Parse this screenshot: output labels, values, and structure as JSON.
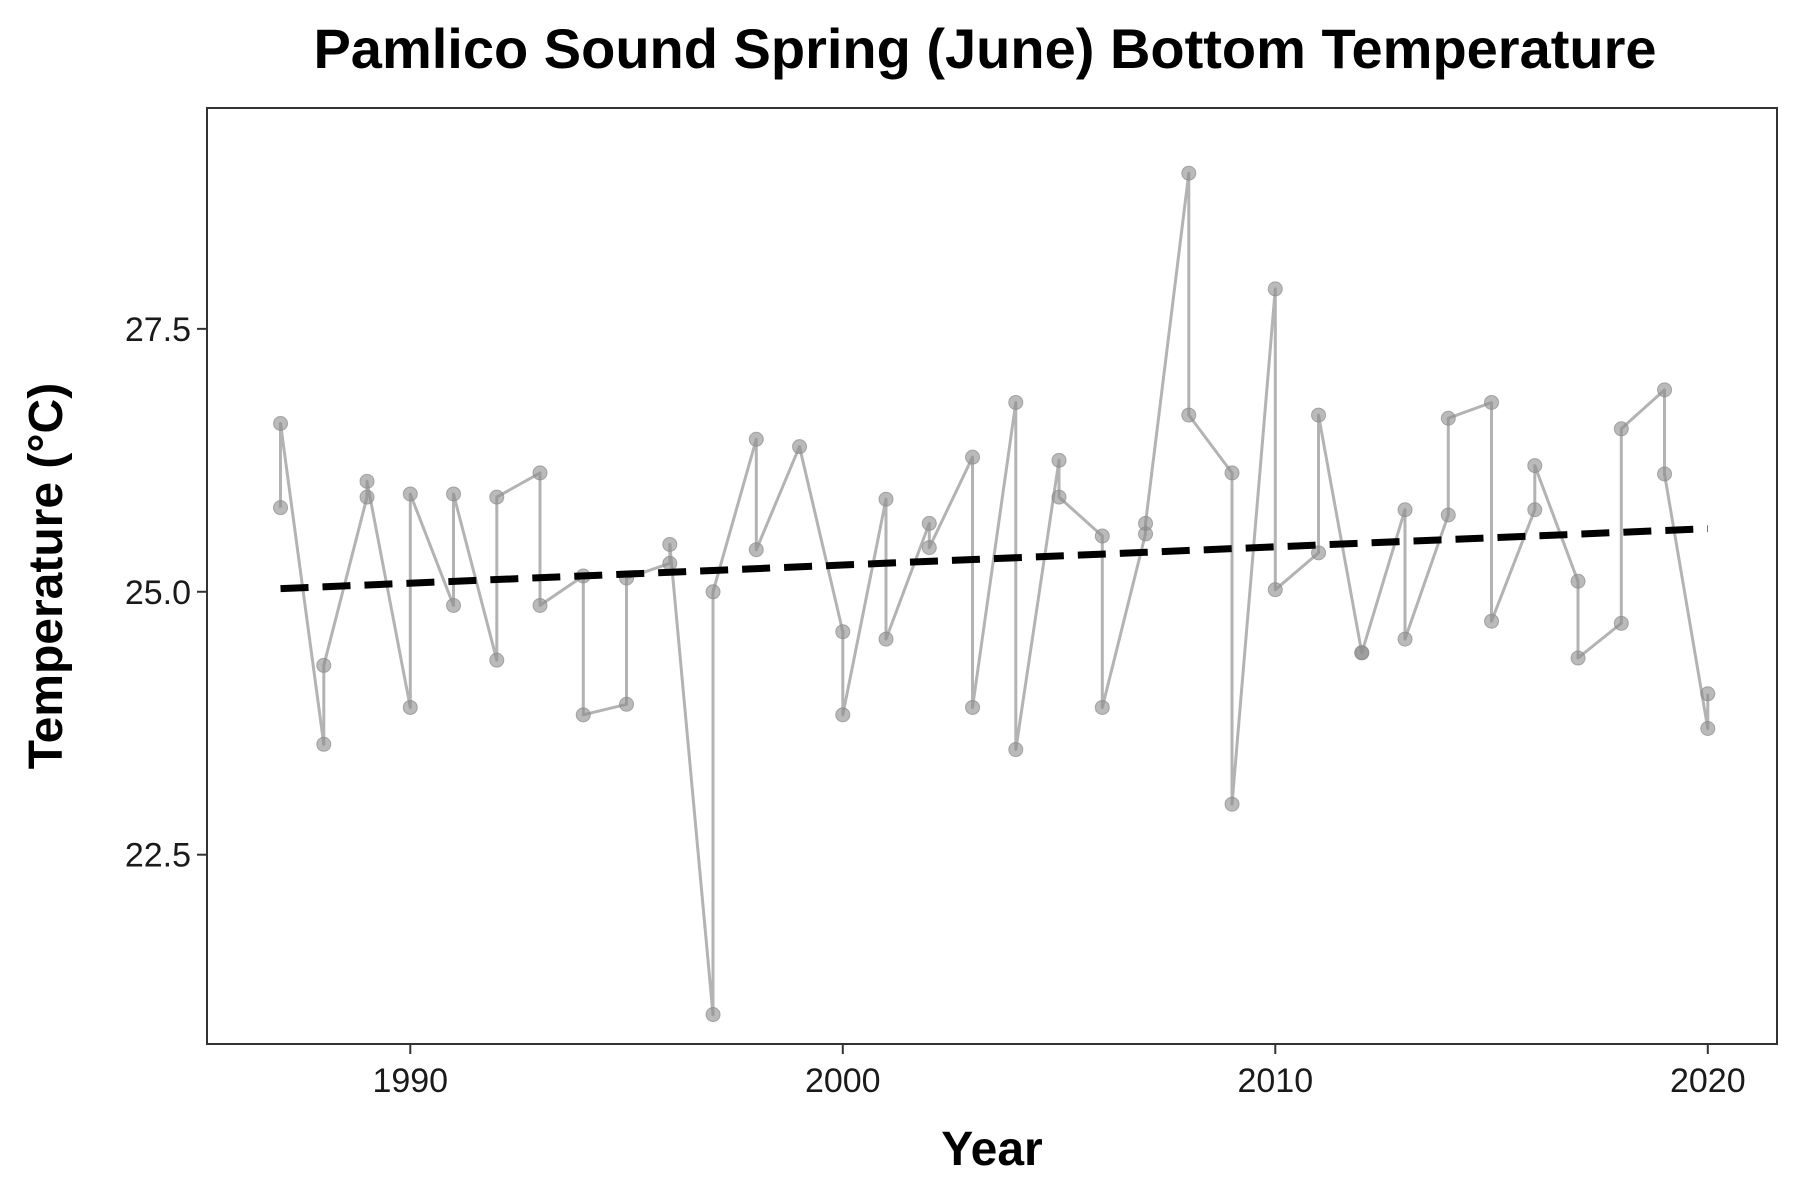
{
  "chart_data": {
    "type": "line",
    "title": "Pamlico Sound Spring (June) Bottom Temperature",
    "xlabel": "Year",
    "ylabel": "Temperature (°C)",
    "xlim": [
      1985.3,
      2021.6
    ],
    "ylim": [
      20.7,
      29.6
    ],
    "x_ticks": [
      1990,
      2000,
      2010,
      2020
    ],
    "x_tick_labels": [
      "1990",
      "2000",
      "2010",
      "2020"
    ],
    "y_ticks": [
      22.5,
      25.0,
      27.5
    ],
    "y_tick_labels": [
      "22.5",
      "25.0",
      "27.5"
    ],
    "grid": false,
    "series": [
      {
        "color": "#a6a6a6",
        "points": [
          {
            "x": 1987,
            "y": 25.8
          },
          {
            "x": 1987,
            "y": 26.6
          },
          {
            "x": 1988,
            "y": 23.55
          },
          {
            "x": 1988,
            "y": 24.3
          },
          {
            "x": 1989,
            "y": 25.9
          },
          {
            "x": 1989,
            "y": 26.05
          },
          {
            "x": 1990,
            "y": 23.9
          },
          {
            "x": 1990,
            "y": 25.93
          },
          {
            "x": 1991,
            "y": 24.87
          },
          {
            "x": 1991,
            "y": 25.93
          },
          {
            "x": 1992,
            "y": 24.35
          },
          {
            "x": 1992,
            "y": 25.9
          },
          {
            "x": 1993,
            "y": 26.13
          },
          {
            "x": 1993,
            "y": 24.87
          },
          {
            "x": 1994,
            "y": 25.15
          },
          {
            "x": 1994,
            "y": 23.83
          },
          {
            "x": 1995,
            "y": 23.93
          },
          {
            "x": 1995,
            "y": 25.13
          },
          {
            "x": 1996,
            "y": 25.27
          },
          {
            "x": 1996,
            "y": 25.45
          },
          {
            "x": 1997,
            "y": 20.98
          },
          {
            "x": 1997,
            "y": 25.0
          },
          {
            "x": 1998,
            "y": 26.45
          },
          {
            "x": 1998,
            "y": 25.4
          },
          {
            "x": 1999,
            "y": 26.38
          },
          {
            "x": 2000,
            "y": 24.62
          },
          {
            "x": 2000,
            "y": 23.83
          },
          {
            "x": 2001,
            "y": 25.88
          },
          {
            "x": 2001,
            "y": 24.55
          },
          {
            "x": 2002,
            "y": 25.65
          },
          {
            "x": 2002,
            "y": 25.42
          },
          {
            "x": 2003,
            "y": 26.28
          },
          {
            "x": 2003,
            "y": 23.9
          },
          {
            "x": 2004,
            "y": 26.8
          },
          {
            "x": 2004,
            "y": 23.5
          },
          {
            "x": 2005,
            "y": 26.25
          },
          {
            "x": 2005,
            "y": 25.9
          },
          {
            "x": 2006,
            "y": 25.53
          },
          {
            "x": 2006,
            "y": 23.9
          },
          {
            "x": 2007,
            "y": 25.55
          },
          {
            "x": 2007,
            "y": 25.65
          },
          {
            "x": 2008,
            "y": 28.98
          },
          {
            "x": 2008,
            "y": 26.68
          },
          {
            "x": 2009,
            "y": 26.13
          },
          {
            "x": 2009,
            "y": 22.98
          },
          {
            "x": 2010,
            "y": 27.88
          },
          {
            "x": 2010,
            "y": 25.02
          },
          {
            "x": 2011,
            "y": 25.37
          },
          {
            "x": 2011,
            "y": 26.68
          },
          {
            "x": 2012,
            "y": 24.42
          },
          {
            "x": 2012,
            "y": 24.42
          },
          {
            "x": 2013,
            "y": 25.78
          },
          {
            "x": 2013,
            "y": 24.55
          },
          {
            "x": 2014,
            "y": 25.73
          },
          {
            "x": 2014,
            "y": 26.65
          },
          {
            "x": 2015,
            "y": 26.8
          },
          {
            "x": 2015,
            "y": 24.72
          },
          {
            "x": 2016,
            "y": 25.78
          },
          {
            "x": 2016,
            "y": 26.2
          },
          {
            "x": 2017,
            "y": 25.1
          },
          {
            "x": 2017,
            "y": 24.37
          },
          {
            "x": 2018,
            "y": 24.7
          },
          {
            "x": 2018,
            "y": 26.55
          },
          {
            "x": 2019,
            "y": 26.92
          },
          {
            "x": 2019,
            "y": 26.12
          },
          {
            "x": 2020,
            "y": 23.7
          },
          {
            "x": 2020,
            "y": 24.03
          }
        ]
      }
    ],
    "trend_line": {
      "style": "dashed",
      "color": "#000000",
      "x": [
        1987,
        2020
      ],
      "y": [
        25.03,
        25.6
      ]
    }
  }
}
